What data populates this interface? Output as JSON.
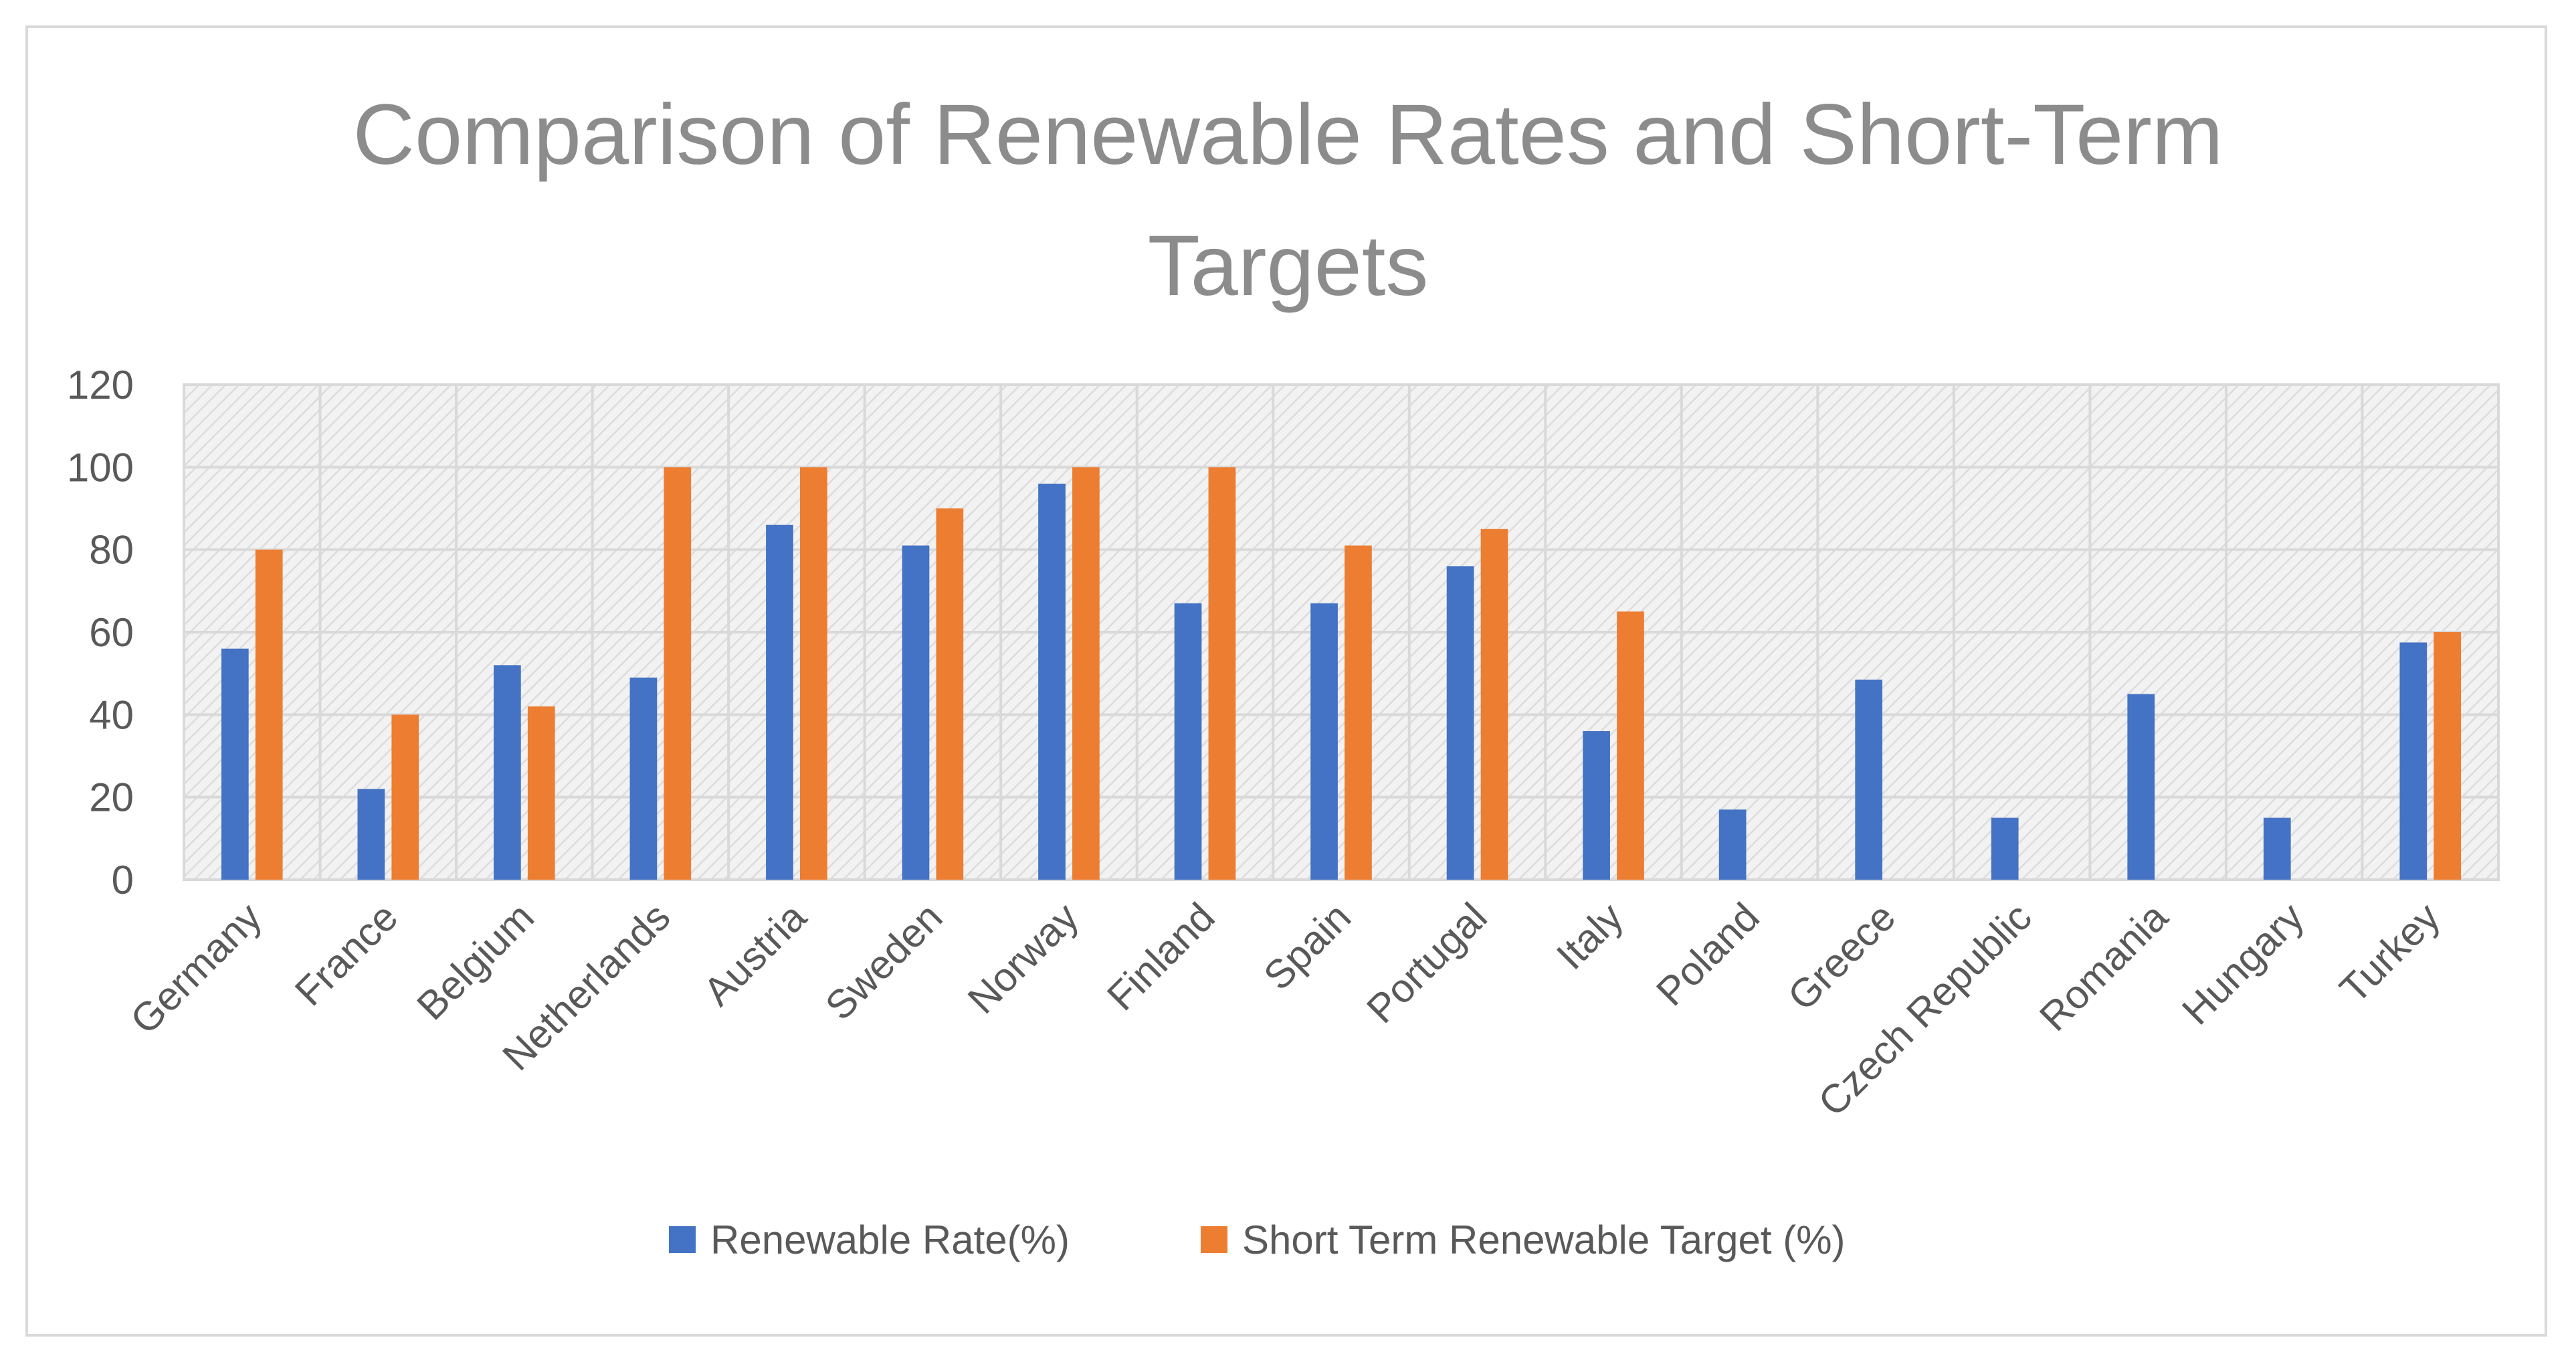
{
  "chart_data": {
    "type": "bar",
    "title": "Comparison of Renewable Rates and Short-Term Targets",
    "title_lines": [
      "Comparison of Renewable Rates and Short-Term",
      "Targets"
    ],
    "xlabel": "",
    "ylabel": "",
    "ylim": [
      0,
      120
    ],
    "yticks": [
      0,
      20,
      40,
      60,
      80,
      100,
      120
    ],
    "grid": true,
    "legend_position": "bottom",
    "categories": [
      "Germany",
      "France",
      "Belgium",
      "Netherlands",
      "Austria",
      "Sweden",
      "Norway",
      "Finland",
      "Spain",
      "Portugal",
      "Italy",
      "Poland",
      "Greece",
      "Czech Republic",
      "Romania",
      "Hungary",
      "Turkey"
    ],
    "series": [
      {
        "name": "Renewable Rate(%)",
        "color": "#4472c4",
        "values": [
          56,
          22,
          52,
          49,
          86,
          81,
          96,
          67,
          67,
          76,
          36,
          17,
          48.5,
          15,
          45,
          15,
          57.5
        ]
      },
      {
        "name": "Short Term Renewable Target (%)",
        "color": "#ed7d31",
        "values": [
          80,
          40,
          42,
          100,
          100,
          90,
          100,
          100,
          81,
          85,
          65,
          null,
          null,
          null,
          null,
          null,
          60
        ]
      }
    ]
  }
}
